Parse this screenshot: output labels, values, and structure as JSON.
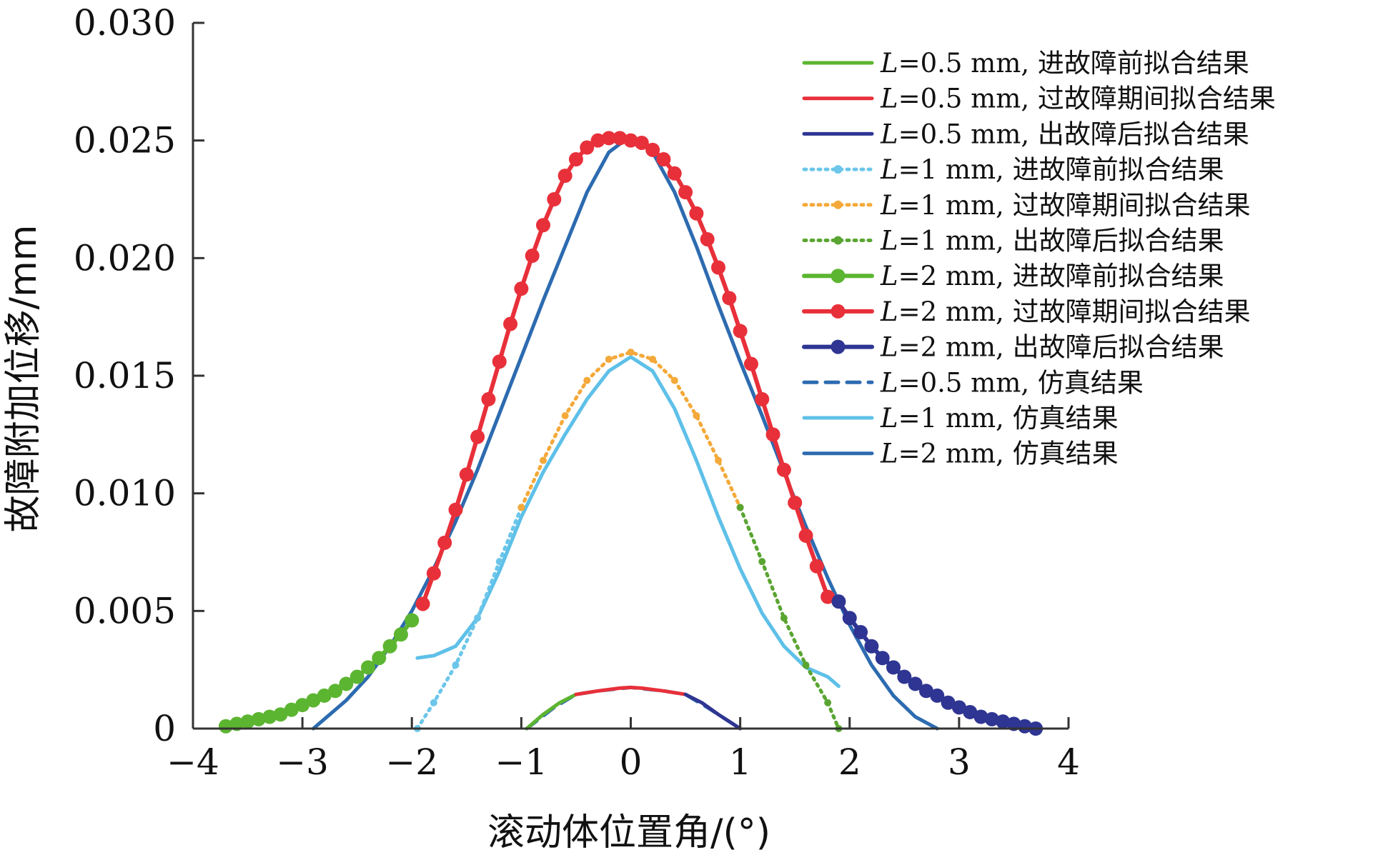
{
  "chart_data": {
    "type": "line",
    "title": "",
    "xlabel": "滚动体位置角/(°)",
    "ylabel": "故障附加位移/mm",
    "xlim": [
      -4,
      4
    ],
    "ylim": [
      0,
      0.03
    ],
    "xticks": [
      -4,
      -3,
      -2,
      -1,
      0,
      1,
      2,
      3,
      4
    ],
    "xtick_labels": [
      "−4",
      "−3",
      "−2",
      "−1",
      "0",
      "1",
      "2",
      "3",
      "4"
    ],
    "yticks": [
      0,
      0.005,
      0.01,
      0.015,
      0.02,
      0.025,
      0.03
    ],
    "ytick_labels": [
      "0",
      "0.005",
      "0.010",
      "0.015",
      "0.020",
      "0.025",
      "0.030"
    ],
    "grid": false,
    "legend_position": "top-right",
    "series": [
      {
        "name_var": "L",
        "name_rest": "=0.5 mm, 进故障前拟合结果",
        "color": "#5cb531",
        "style": "solid",
        "marker": "none",
        "x": [
          -0.95,
          -0.8,
          -0.65,
          -0.5
        ],
        "y": [
          0.0,
          0.0006,
          0.0011,
          0.00145
        ]
      },
      {
        "name_var": "L",
        "name_rest": "=0.5 mm, 过故障期间拟合结果",
        "color": "#e8303a",
        "style": "solid",
        "marker": "none",
        "x": [
          -0.5,
          -0.3,
          -0.1,
          0.0,
          0.1,
          0.3,
          0.5
        ],
        "y": [
          0.00145,
          0.0016,
          0.00172,
          0.00175,
          0.00172,
          0.0016,
          0.00145
        ]
      },
      {
        "name_var": "L",
        "name_rest": "=0.5 mm, 出故障后拟合结果",
        "color": "#2e3592",
        "style": "solid",
        "marker": "none",
        "x": [
          0.5,
          0.65,
          0.8,
          1.0
        ],
        "y": [
          0.00145,
          0.0011,
          0.0006,
          0.0
        ]
      },
      {
        "name_var": "L",
        "name_rest": "=1 mm, 进故障前拟合结果",
        "color": "#6cc6ea",
        "style": "dotted",
        "marker": "small",
        "x": [
          -1.95,
          -1.8,
          -1.6,
          -1.4,
          -1.2,
          -1.0
        ],
        "y": [
          0.0,
          0.0011,
          0.0027,
          0.0047,
          0.0071,
          0.0094
        ]
      },
      {
        "name_var": "L",
        "name_rest": "=1 mm, 过故障期间拟合结果",
        "color": "#f4a93a",
        "style": "dotted",
        "marker": "small",
        "x": [
          -1.0,
          -0.8,
          -0.6,
          -0.4,
          -0.2,
          0.0,
          0.2,
          0.4,
          0.6,
          0.8,
          1.0
        ],
        "y": [
          0.0094,
          0.0114,
          0.0133,
          0.0148,
          0.0157,
          0.016,
          0.0157,
          0.0148,
          0.0133,
          0.0114,
          0.0094
        ]
      },
      {
        "name_var": "L",
        "name_rest": "=1 mm, 出故障后拟合结果",
        "color": "#5aa532",
        "style": "dotted",
        "marker": "small",
        "x": [
          1.0,
          1.2,
          1.4,
          1.6,
          1.8,
          1.9
        ],
        "y": [
          0.0094,
          0.0071,
          0.0047,
          0.0027,
          0.0011,
          0.0
        ]
      },
      {
        "name_var": "L",
        "name_rest": "=2 mm, 进故障前拟合结果",
        "color": "#5cb531",
        "style": "solid",
        "marker": "large",
        "x": [
          -3.7,
          -3.6,
          -3.5,
          -3.4,
          -3.3,
          -3.2,
          -3.1,
          -3.0,
          -2.9,
          -2.8,
          -2.7,
          -2.6,
          -2.5,
          -2.4,
          -2.3,
          -2.2,
          -2.1,
          -2.0
        ],
        "y": [
          0.0001,
          0.0002,
          0.0003,
          0.0004,
          0.0005,
          0.0006,
          0.0008,
          0.001,
          0.0012,
          0.0014,
          0.0016,
          0.0019,
          0.0022,
          0.0026,
          0.003,
          0.0035,
          0.004,
          0.0046
        ]
      },
      {
        "name_var": "L",
        "name_rest": "=2 mm, 过故障期间拟合结果",
        "color": "#e8303a",
        "style": "solid",
        "marker": "large",
        "x": [
          -1.9,
          -1.8,
          -1.7,
          -1.6,
          -1.5,
          -1.4,
          -1.3,
          -1.2,
          -1.1,
          -1.0,
          -0.9,
          -0.8,
          -0.7,
          -0.6,
          -0.5,
          -0.4,
          -0.3,
          -0.2,
          -0.1,
          0.0,
          0.1,
          0.2,
          0.3,
          0.4,
          0.5,
          0.6,
          0.7,
          0.8,
          0.9,
          1.0,
          1.1,
          1.2,
          1.3,
          1.4,
          1.5,
          1.6,
          1.7,
          1.8
        ],
        "y": [
          0.0053,
          0.0066,
          0.0079,
          0.0093,
          0.0108,
          0.0124,
          0.014,
          0.0156,
          0.0172,
          0.0187,
          0.0201,
          0.0214,
          0.0225,
          0.0235,
          0.0242,
          0.0247,
          0.025,
          0.0251,
          0.0251,
          0.025,
          0.0249,
          0.0246,
          0.0242,
          0.0236,
          0.0228,
          0.0219,
          0.0208,
          0.0196,
          0.0183,
          0.0169,
          0.0155,
          0.014,
          0.0125,
          0.011,
          0.0096,
          0.0082,
          0.0069,
          0.0056
        ]
      },
      {
        "name_var": "L",
        "name_rest": "=2 mm, 出故障后拟合结果",
        "color": "#2e3592",
        "style": "solid",
        "marker": "large",
        "x": [
          1.9,
          2.0,
          2.1,
          2.2,
          2.3,
          2.4,
          2.5,
          2.6,
          2.7,
          2.8,
          2.9,
          3.0,
          3.1,
          3.2,
          3.3,
          3.4,
          3.5,
          3.6,
          3.7
        ],
        "y": [
          0.0054,
          0.0047,
          0.0041,
          0.0035,
          0.003,
          0.0026,
          0.0022,
          0.0019,
          0.0016,
          0.0014,
          0.0011,
          0.0009,
          0.0007,
          0.0005,
          0.0004,
          0.0003,
          0.0002,
          0.0001,
          0.0
        ]
      },
      {
        "name_var": "L",
        "name_rest": "=0.5 mm, 仿真结果",
        "color": "#2d6bb0",
        "style": "dashed",
        "marker": "none",
        "x": [
          -0.95,
          -0.7,
          -0.5,
          -0.3,
          0.0,
          0.3,
          0.5,
          0.7,
          1.0
        ],
        "y": [
          0.0,
          0.0009,
          0.00145,
          0.0016,
          0.00175,
          0.0016,
          0.00145,
          0.0009,
          0.0
        ]
      },
      {
        "name_var": "L",
        "name_rest": "=1 mm, 仿真结果",
        "color": "#5ec0e8",
        "style": "solid",
        "marker": "none",
        "x": [
          -1.95,
          -1.8,
          -1.6,
          -1.4,
          -1.2,
          -1.0,
          -0.8,
          -0.6,
          -0.4,
          -0.2,
          0.0,
          0.2,
          0.4,
          0.6,
          0.8,
          1.0,
          1.2,
          1.4,
          1.6,
          1.8,
          1.9
        ],
        "y": [
          0.003,
          0.0031,
          0.0035,
          0.0047,
          0.0067,
          0.009,
          0.0109,
          0.0125,
          0.014,
          0.0152,
          0.0158,
          0.0152,
          0.0136,
          0.0114,
          0.009,
          0.0068,
          0.0049,
          0.0035,
          0.0026,
          0.0022,
          0.0018
        ]
      },
      {
        "name_var": "L",
        "name_rest": "=2 mm, 仿真结果",
        "color": "#2d6bb0",
        "style": "solid",
        "marker": "none",
        "x": [
          -2.9,
          -2.8,
          -2.6,
          -2.4,
          -2.2,
          -2.0,
          -1.8,
          -1.6,
          -1.4,
          -1.2,
          -1.0,
          -0.8,
          -0.6,
          -0.4,
          -0.2,
          0.0,
          0.2,
          0.4,
          0.6,
          0.8,
          1.0,
          1.2,
          1.4,
          1.6,
          1.8,
          2.0,
          2.2,
          2.4,
          2.6,
          2.8
        ],
        "y": [
          0.0,
          0.0004,
          0.0012,
          0.0022,
          0.0035,
          0.005,
          0.0068,
          0.0088,
          0.011,
          0.0134,
          0.0158,
          0.0182,
          0.0205,
          0.0228,
          0.0245,
          0.0252,
          0.0245,
          0.0228,
          0.0205,
          0.018,
          0.0156,
          0.0133,
          0.0109,
          0.0086,
          0.0064,
          0.0044,
          0.0027,
          0.0014,
          0.0005,
          0.0
        ]
      }
    ]
  }
}
